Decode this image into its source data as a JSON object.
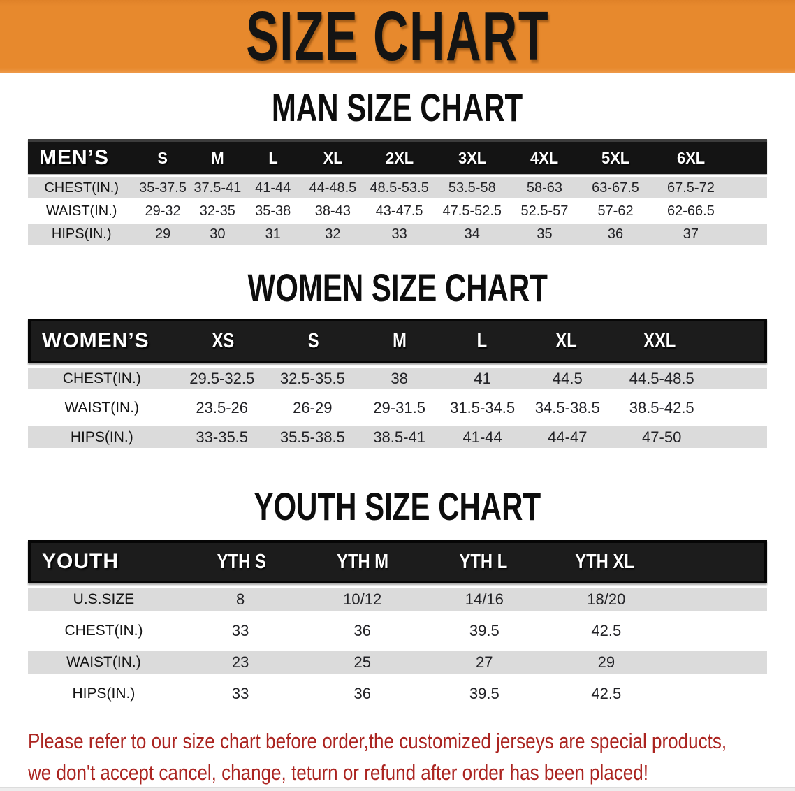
{
  "banner": {
    "title": "SIZE CHART"
  },
  "sections": [
    {
      "heading": "MAN SIZE CHART",
      "table": {
        "header": [
          "MEN’S",
          "S",
          "M",
          "L",
          "XL",
          "2XL",
          "3XL",
          "4XL",
          "5XL",
          "6XL"
        ],
        "rows": [
          {
            "label": "CHEST(IN.)",
            "values": [
              "35-37.5",
              "37.5-41",
              "41-44",
              "44-48.5",
              "48.5-53.5",
              "53.5-58",
              "58-63",
              "63-67.5",
              "67.5-72"
            ]
          },
          {
            "label": "WAIST(IN.)",
            "values": [
              "29-32",
              "32-35",
              "35-38",
              "38-43",
              "43-47.5",
              "47.5-52.5",
              "52.5-57",
              "57-62",
              "62-66.5"
            ]
          },
          {
            "label": "HIPS(IN.)",
            "values": [
              "29",
              "30",
              "31",
              "32",
              "33",
              "34",
              "35",
              "36",
              "37"
            ]
          }
        ]
      }
    },
    {
      "heading": "WOMEN SIZE CHART",
      "table": {
        "header": [
          "WOMEN’S",
          "XS",
          "S",
          "M",
          "L",
          "XL",
          "XXL"
        ],
        "rows": [
          {
            "label": "CHEST(IN.)",
            "values": [
              "29.5-32.5",
              "32.5-35.5",
              "38",
              "41",
              "44.5",
              "44.5-48.5"
            ]
          },
          {
            "label": "WAIST(IN.)",
            "values": [
              "23.5-26",
              "26-29",
              "29-31.5",
              "31.5-34.5",
              "34.5-38.5",
              "38.5-42.5"
            ]
          },
          {
            "label": "HIPS(IN.)",
            "values": [
              "33-35.5",
              "35.5-38.5",
              "38.5-41",
              "41-44",
              "44-47",
              "47-50"
            ]
          }
        ]
      }
    },
    {
      "heading": "YOUTH SIZE CHART",
      "table": {
        "header": [
          "YOUTH",
          "YTH S",
          "YTH M",
          "YTH L",
          "YTH XL"
        ],
        "rows": [
          {
            "label": "U.S.SIZE",
            "values": [
              "8",
              "10/12",
              "14/16",
              "18/20"
            ]
          },
          {
            "label": "CHEST(IN.)",
            "values": [
              "33",
              "36",
              "39.5",
              "42.5"
            ]
          },
          {
            "label": "WAIST(IN.)",
            "values": [
              "23",
              "25",
              "27",
              "29"
            ]
          },
          {
            "label": "HIPS(IN.)",
            "values": [
              "33",
              "36",
              "39.5",
              "42.5"
            ]
          }
        ]
      }
    }
  ],
  "disclaimer": {
    "line1": "Please refer to our size chart before order,the customized jerseys are special products,",
    "line2": "we don't accept cancel, change, teturn or refund after order has been placed!"
  },
  "colors": {
    "banner_orange": "#E7892D",
    "table_header_black": "#161616",
    "row_gray": "#DBDBDB",
    "disclaimer_red": "#AB2420"
  }
}
